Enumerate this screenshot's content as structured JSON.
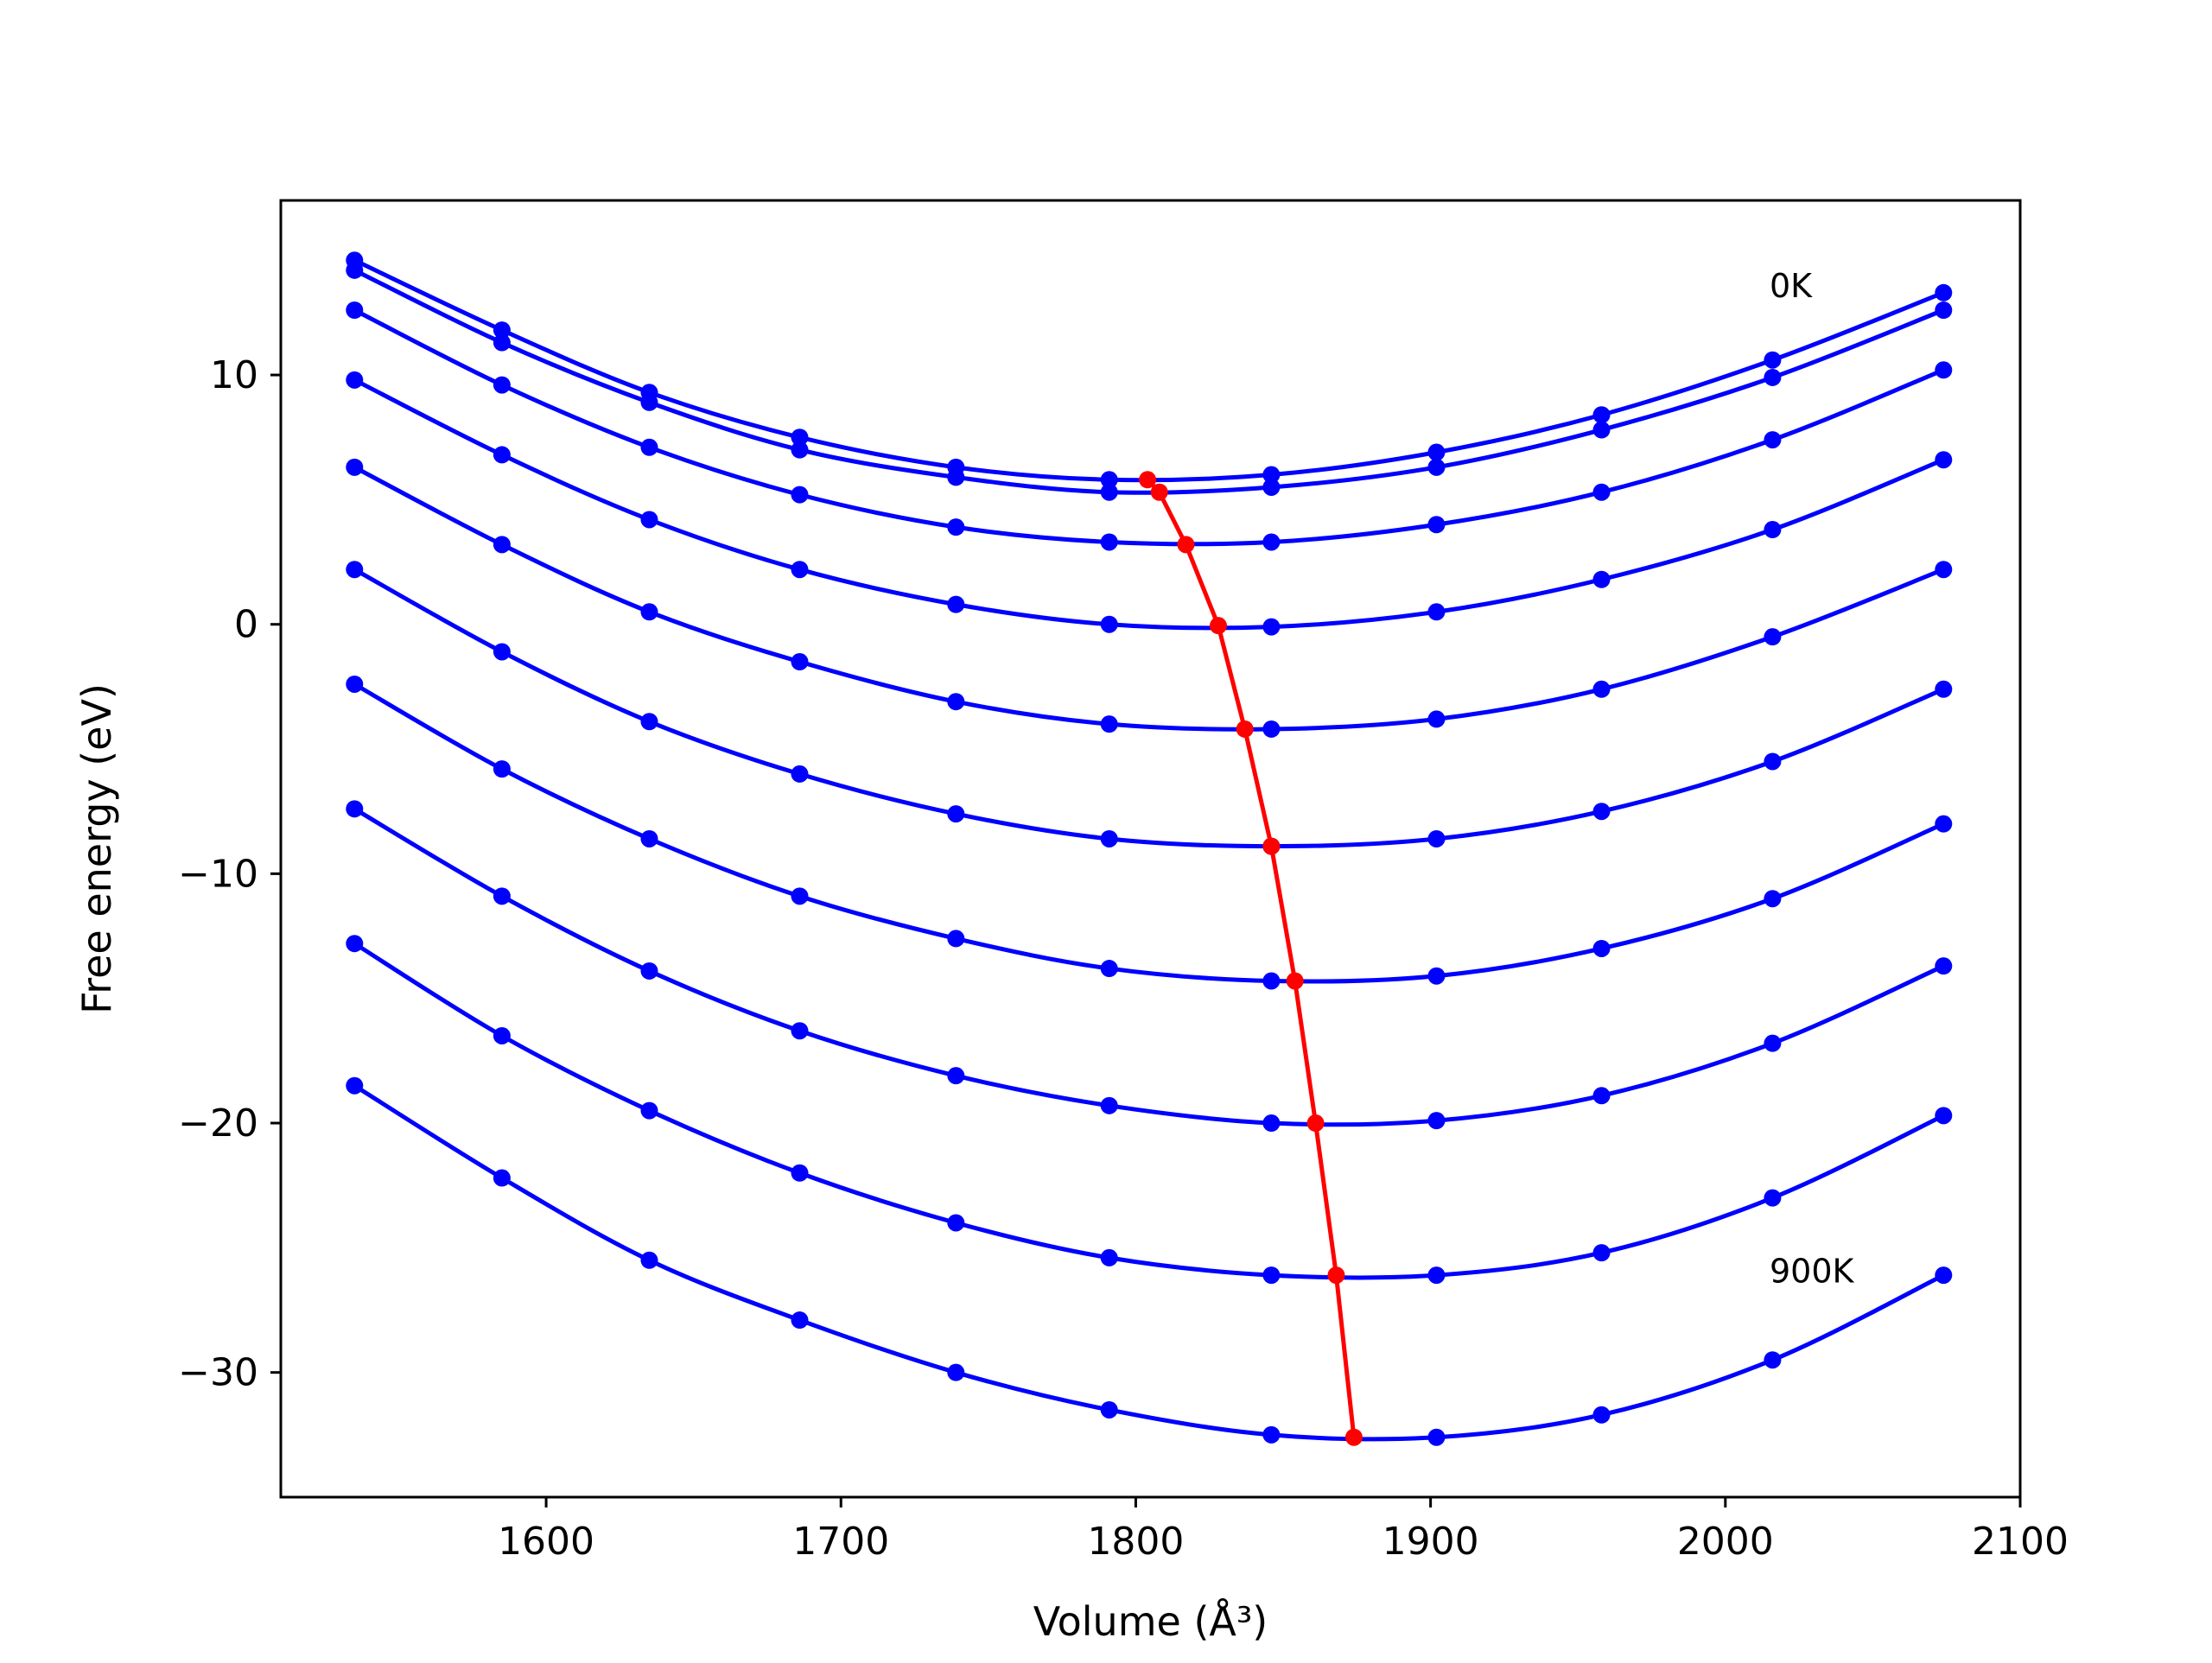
{
  "chart_data": {
    "type": "line",
    "title": "",
    "xlabel": "Volume (Å³)",
    "ylabel": "Free energy (eV)",
    "xlim": [
      1510,
      2100
    ],
    "ylim": [
      -35,
      17
    ],
    "xticks": [
      1600,
      1700,
      1800,
      1900,
      2000,
      2100
    ],
    "yticks": [
      -30,
      -20,
      -10,
      0,
      10
    ],
    "grid": false,
    "legend": "none",
    "colors": {
      "isotherm": "#0000ff",
      "minimum": "#ff0000"
    },
    "annotations": [
      {
        "text": "0K",
        "x": 2015,
        "y": 13.6
      },
      {
        "text": "900K",
        "x": 2015,
        "y": -25.9
      }
    ],
    "x": [
      1535,
      1585,
      1635,
      1686,
      1739,
      1791,
      1846,
      1902,
      1958,
      2016,
      2074
    ],
    "series": [
      {
        "values": [
          14.6,
          11.8,
          9.3,
          7.5,
          6.3,
          5.8,
          6.0,
          6.9,
          8.4,
          10.6,
          13.3
        ]
      },
      {
        "values": [
          14.2,
          11.3,
          8.9,
          7.0,
          5.9,
          5.3,
          5.5,
          6.3,
          7.8,
          9.9,
          12.6
        ]
      },
      {
        "values": [
          12.6,
          9.6,
          7.1,
          5.2,
          3.9,
          3.3,
          3.3,
          4.0,
          5.3,
          7.4,
          10.2
        ]
      },
      {
        "values": [
          9.8,
          6.8,
          4.2,
          2.2,
          0.8,
          0.0,
          -0.1,
          0.5,
          1.8,
          3.8,
          6.6
        ]
      },
      {
        "values": [
          6.3,
          3.2,
          0.5,
          -1.5,
          -3.1,
          -4.0,
          -4.2,
          -3.8,
          -2.6,
          -0.5,
          2.2
        ]
      },
      {
        "values": [
          2.2,
          -1.1,
          -3.9,
          -6.0,
          -7.6,
          -8.6,
          -8.9,
          -8.6,
          -7.5,
          -5.5,
          -2.6
        ]
      },
      {
        "values": [
          -2.4,
          -5.8,
          -8.6,
          -10.9,
          -12.6,
          -13.8,
          -14.3,
          -14.1,
          -13.0,
          -11.0,
          -8.0
        ]
      },
      {
        "values": [
          -7.4,
          -10.9,
          -13.9,
          -16.3,
          -18.1,
          -19.3,
          -20.0,
          -19.9,
          -18.9,
          -16.8,
          -13.7
        ]
      },
      {
        "values": [
          -12.8,
          -16.5,
          -19.5,
          -22.0,
          -24.0,
          -25.4,
          -26.1,
          -26.1,
          -25.2,
          -23.0,
          -19.7
        ]
      },
      {
        "values": [
          -18.5,
          -22.2,
          -25.5,
          -27.9,
          -30.0,
          -31.5,
          -32.5,
          -32.6,
          -31.7,
          -29.5,
          -26.1
        ]
      }
    ],
    "minimum_line": {
      "x": [
        1804,
        1808,
        1817,
        1828,
        1837,
        1846,
        1854,
        1861,
        1868,
        1874
      ],
      "y": [
        5.8,
        5.3,
        3.2,
        -0.05,
        -4.2,
        -8.9,
        -14.3,
        -20.0,
        -26.1,
        -32.6
      ]
    }
  }
}
